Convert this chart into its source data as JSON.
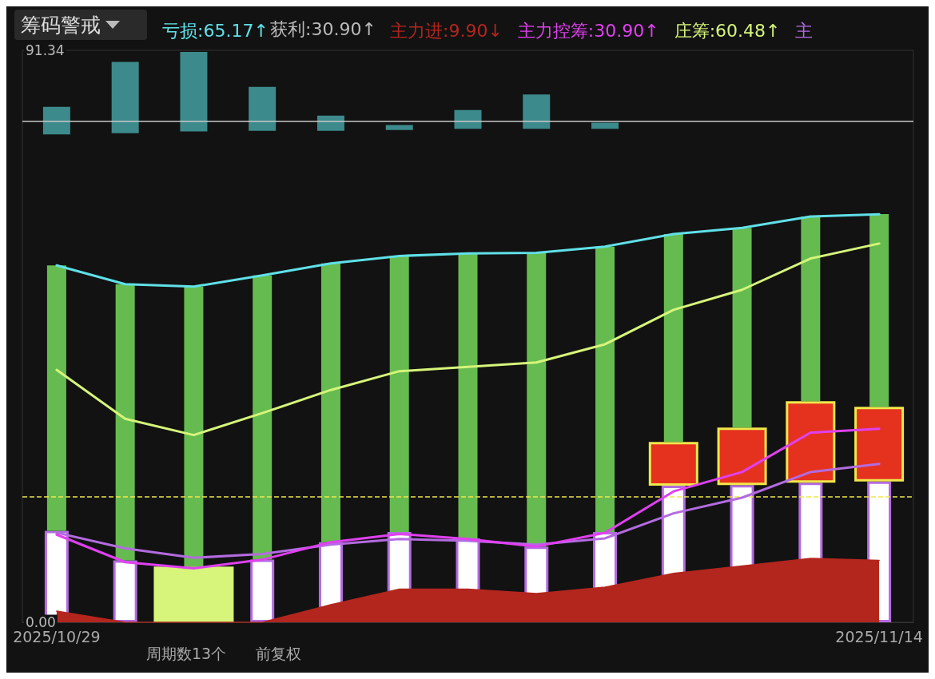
{
  "chart_data": {
    "type": "bar",
    "title": "筹码警戒",
    "categories": [
      "2025/10/29",
      null,
      null,
      null,
      null,
      null,
      null,
      null,
      null,
      null,
      null,
      null,
      "2025/11/14"
    ],
    "ylim": [
      0,
      91.34
    ],
    "yticks": [
      {
        "value": 0,
        "label": "0.00"
      },
      91.34
    ],
    "legend": "top left",
    "marker": "none",
    "annotations": [
      "获利:30.90↑",
      "周期数13个",
      "前复权"
    ],
    "ref_lines": [
      {
        "axis": "y",
        "value": 20,
        "color": "#f0e84a",
        "line_style": "dashed"
      },
      {
        "axis": "y",
        "value": 80,
        "color": "#c8c8c8",
        "line_style": "solid"
      }
    ],
    "series": [
      {
        "color": "#ffffff",
        "values": [
          14.6,
          9.9,
          null,
          10.0,
          12.8,
          14.4,
          13.4,
          12.1,
          14.4,
          21.8,
          21.9,
          22.3,
          22.5
        ]
      },
      {
        "color": "#d6f57a",
        "values": [
          null,
          null,
          8.9,
          null,
          null,
          null,
          null,
          null,
          null,
          null,
          null,
          null,
          null
        ]
      },
      {
        "color": "#e5321f",
        "base": [
          null,
          null,
          null,
          null,
          null,
          null,
          null,
          null,
          null,
          21.8,
          21.9,
          22.3,
          22.5
        ],
        "values": [
          null,
          null,
          null,
          null,
          null,
          null,
          null,
          null,
          null,
          7.0,
          9.2,
          13.0,
          11.9
        ]
      },
      {
        "color": "#66bb50",
        "base": [
          14.6,
          9.9,
          8.9,
          10.0,
          12.8,
          14.4,
          13.4,
          12.1,
          14.4,
          28.8,
          31.1,
          35.3,
          34.4
        ],
        "values": [
          42.4,
          44.1,
          44.7,
          45.4,
          44.5,
          44.1,
          45.5,
          46.9,
          45.6,
          33.2,
          31.9,
          29.5,
          30.8
        ]
      },
      {
        "type": "area",
        "name": "主力进:9.90↓",
        "color": "#b3261e",
        "values": [
          1.8,
          0,
          0,
          0,
          2.8,
          5.3,
          5.3,
          4.6,
          5.6,
          7.8,
          9.0,
          10.2,
          9.9
        ]
      },
      {
        "type": "line",
        "name": "主",
        "color": "#b36be0",
        "values": [
          14.3,
          11.8,
          10.3,
          10.9,
          12.4,
          13.3,
          13.0,
          12.4,
          13.4,
          17.4,
          19.9,
          24.0,
          25.3
        ]
      },
      {
        "type": "line",
        "name": "主力控筹:30.90↑",
        "color": "#e040f0",
        "values": [
          14.0,
          9.6,
          8.6,
          10.0,
          12.8,
          14.1,
          13.3,
          12.1,
          14.3,
          20.9,
          24.0,
          30.3,
          30.9
        ]
      },
      {
        "type": "line",
        "name": "庄筹:60.48↑",
        "color": "#d6f57a",
        "values": [
          40.3,
          32.5,
          29.9,
          33.4,
          37.1,
          40.1,
          40.8,
          41.5,
          44.4,
          49.9,
          53.1,
          58.1,
          60.48
        ]
      },
      {
        "type": "line",
        "name": "亏损:65.17↑",
        "color": "#60e0e8",
        "values": [
          57.0,
          54.0,
          53.6,
          55.4,
          57.3,
          58.5,
          58.9,
          59.0,
          60.0,
          62.0,
          63.0,
          64.8,
          65.17
        ]
      },
      {
        "color": "#3d8a8c",
        "base": [
          77.9,
          78.1,
          78.4,
          78.5,
          78.5,
          78.6,
          78.8,
          78.8,
          78.8,
          null,
          null,
          null,
          null
        ],
        "values": [
          4.4,
          11.4,
          12.7,
          7.0,
          2.4,
          0.8,
          3.0,
          5.5,
          1.0,
          null,
          null,
          null,
          null
        ]
      }
    ]
  }
}
